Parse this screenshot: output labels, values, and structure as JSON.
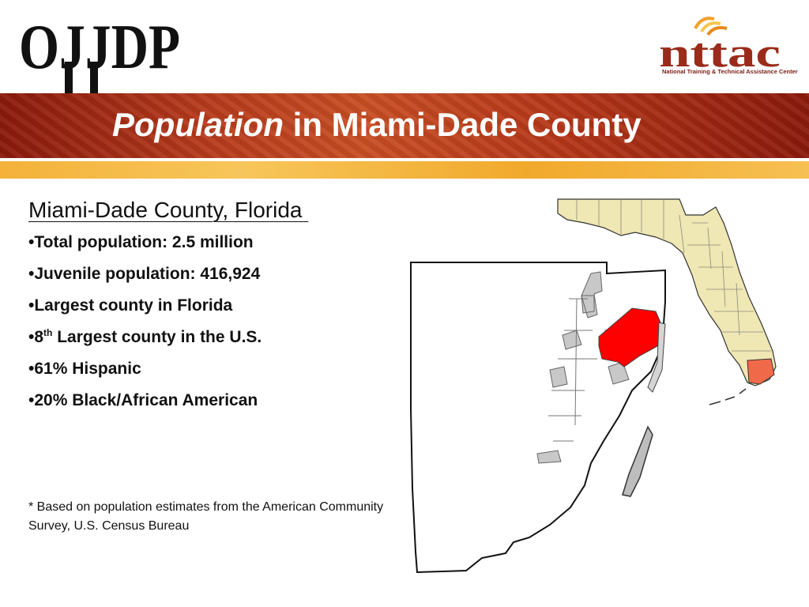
{
  "logos": {
    "left_text": "OJJDP",
    "right_text": "nttac",
    "right_subtitle": "National Training & Technical Assistance Center"
  },
  "title": {
    "emphasis": "Population",
    "rest": " in Miami-Dade County"
  },
  "subheading": "Miami-Dade County, Florida ",
  "bullets": [
    {
      "marker": "•",
      "text": "Total population:  2.5 million"
    },
    {
      "marker": "•",
      "text": "Juvenile population:  416,924"
    },
    {
      "marker": "•",
      "text": "Largest county in Florida"
    },
    {
      "marker": "•",
      "prefix": "8",
      "sup": "th",
      "text": " Largest county in the U.S."
    },
    {
      "marker": "•",
      "text": "61% Hispanic"
    },
    {
      "marker": "•",
      "text": "20% Black/African American"
    }
  ],
  "footnote": "* Based on population estimates from the American Community Survey, U.S. Census Bureau",
  "colors": {
    "title_band": "#b53a1c",
    "gold_band": "#f4b23a",
    "highlight_red": "#ff0000",
    "florida_fill": "#efe7b4",
    "county_highlight": "#f06a4a",
    "municipality_gray": "#c8c8c8"
  }
}
